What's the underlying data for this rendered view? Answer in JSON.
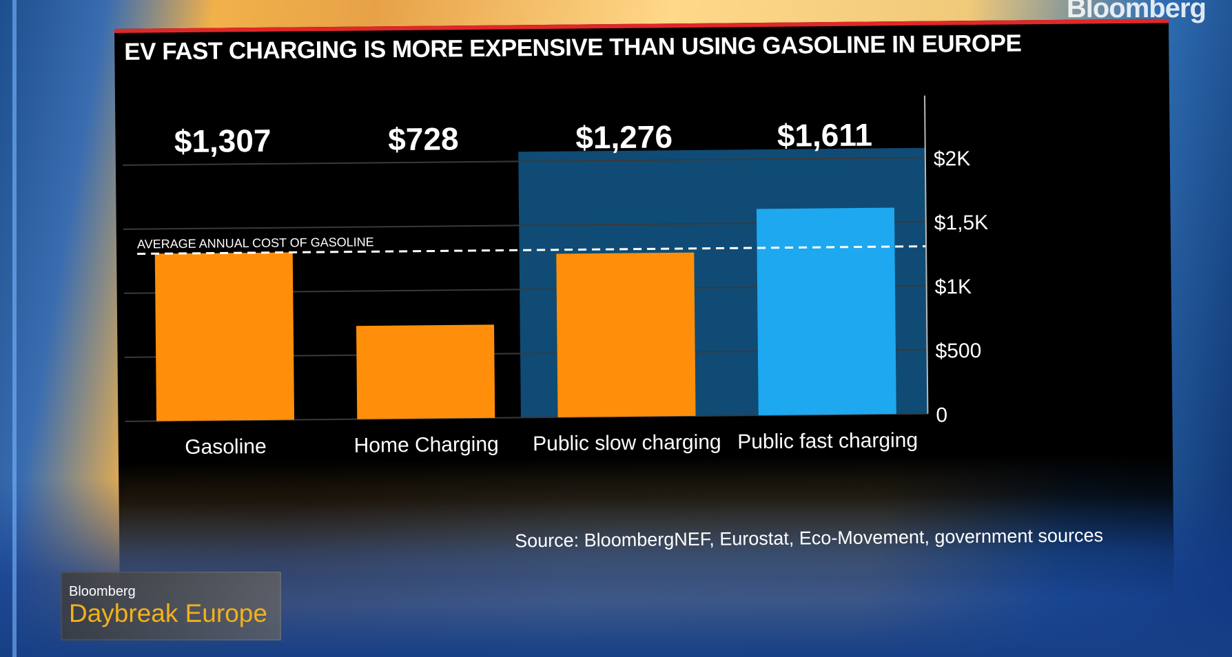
{
  "brand": "Bloomberg",
  "title": "EV FAST CHARGING IS MORE EXPENSIVE THAN USING GASOLINE IN EUROPE",
  "source": "Source: BloombergNEF, Eurostat, Eco-Movement, government sources",
  "show": {
    "network": "Bloomberg",
    "name": "Daybreak Europe"
  },
  "colors": {
    "orange": "#ff8f0a",
    "blue": "#1ea8f0",
    "highlight_bg": "#0f4b74",
    "background": "#000000",
    "title_bar_accent": "#e02828"
  },
  "chart_data": {
    "type": "bar",
    "categories": [
      "Gasoline",
      "Home Charging",
      "Public slow charging",
      "Public fast charging"
    ],
    "values": [
      1307,
      728,
      1276,
      1611
    ],
    "value_labels": [
      "$1,307",
      "$728",
      "$1,276",
      "$1,611"
    ],
    "bar_colors": [
      "#ff8f0a",
      "#ff8f0a",
      "#ff8f0a",
      "#1ea8f0"
    ],
    "highlighted_region": [
      "Public slow charging",
      "Public fast charging"
    ],
    "yticks": [
      {
        "value": 0,
        "label": "0"
      },
      {
        "value": 500,
        "label": "$500"
      },
      {
        "value": 1000,
        "label": "$1K"
      },
      {
        "value": 1500,
        "label": "$1,5K"
      },
      {
        "value": 2000,
        "label": "$2K"
      }
    ],
    "ylim": [
      0,
      2000
    ],
    "y_axis_position": "right",
    "grid": true,
    "reference_line": {
      "value": 1307,
      "label": "AVERAGE ANNUAL COST OF GASOLINE",
      "style": "dashed"
    }
  }
}
